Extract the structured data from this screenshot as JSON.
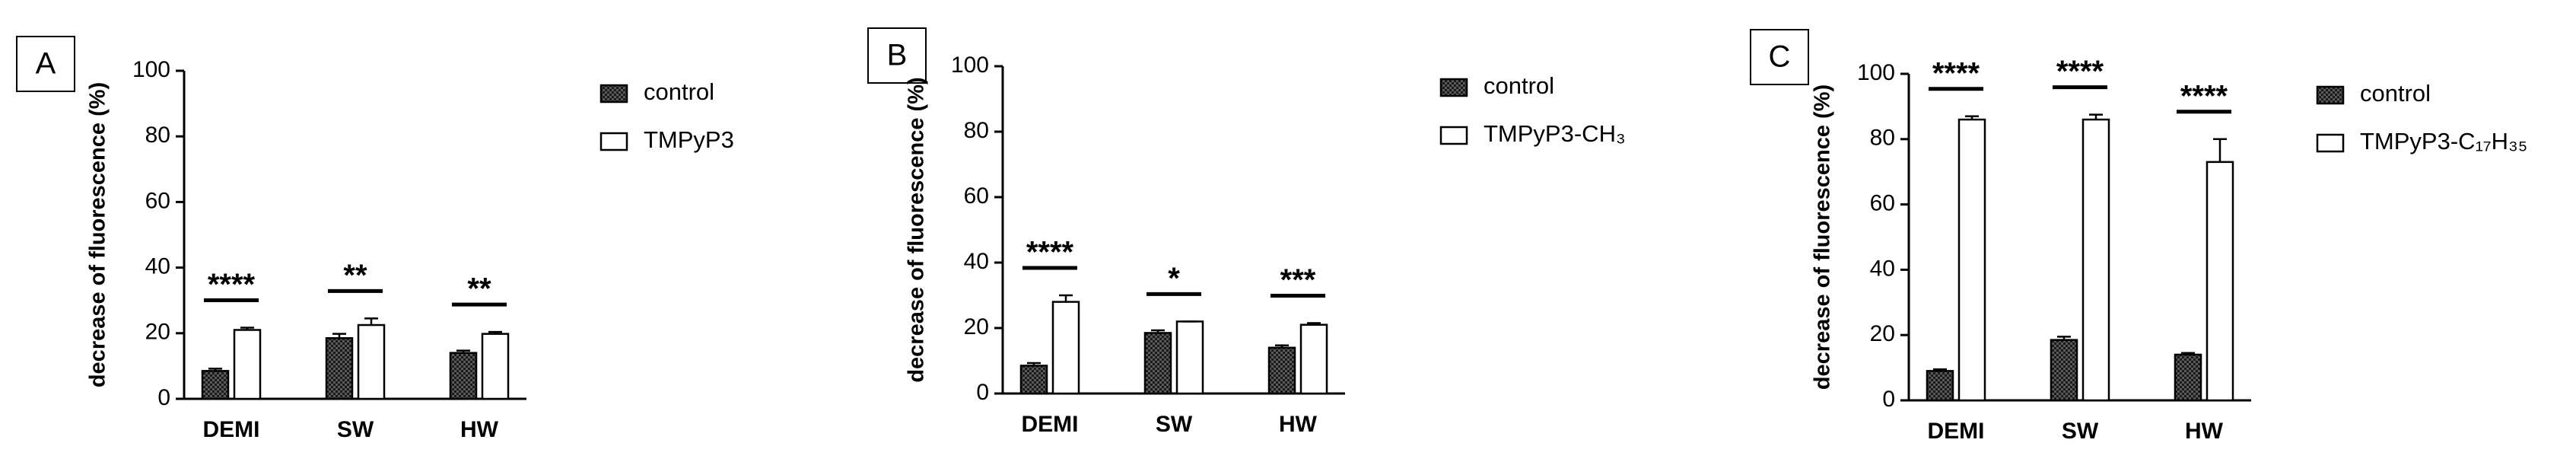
{
  "chart_data": [
    {
      "type": "bar",
      "panel": "A",
      "ylabel": "decrease of fluorescence (%)",
      "categories": [
        "DEMI",
        "SW",
        "HW"
      ],
      "ylim": [
        0,
        100
      ],
      "yticks": [
        0,
        20,
        40,
        60,
        80,
        100
      ],
      "series": [
        {
          "name": "control",
          "color": "#5a5a5a",
          "hatch": true,
          "values": [
            8.5,
            18.5,
            14
          ],
          "errors": [
            0.7,
            1.3,
            0.7
          ]
        },
        {
          "name": "TMPyP3",
          "color": "#ffffff",
          "hatch": false,
          "values": [
            21,
            22.5,
            19.8
          ],
          "errors": [
            0.7,
            2,
            0.6
          ]
        }
      ],
      "annotations": [
        "****",
        "**",
        "**"
      ]
    },
    {
      "type": "bar",
      "panel": "B",
      "ylabel": "decrease of fluorescence (%)",
      "categories": [
        "DEMI",
        "SW",
        "HW"
      ],
      "ylim": [
        0,
        100
      ],
      "yticks": [
        0,
        20,
        40,
        60,
        80,
        100
      ],
      "series": [
        {
          "name": "control",
          "color": "#5a5a5a",
          "hatch": true,
          "values": [
            8.5,
            18.5,
            14
          ],
          "errors": [
            0.8,
            0.8,
            0.7
          ]
        },
        {
          "name": "TMPyP3-CH₃",
          "color": "#ffffff",
          "hatch": false,
          "values": [
            28,
            22,
            21
          ],
          "errors": [
            2,
            0,
            0.5
          ]
        }
      ],
      "annotations": [
        "****",
        "*",
        "***"
      ]
    },
    {
      "type": "bar",
      "panel": "C",
      "ylabel": "decrease of fluorescence (%)",
      "categories": [
        "DEMI",
        "SW",
        "HW"
      ],
      "ylim": [
        0,
        100
      ],
      "yticks": [
        0,
        20,
        40,
        60,
        80,
        100
      ],
      "series": [
        {
          "name": "control",
          "color": "#5a5a5a",
          "hatch": true,
          "values": [
            9,
            18.5,
            14
          ],
          "errors": [
            0.5,
            1,
            0.5
          ]
        },
        {
          "name": "TMPyP3-C₁₇H₃₅",
          "color": "#ffffff",
          "hatch": false,
          "values": [
            86,
            86,
            73
          ],
          "errors": [
            1,
            1.5,
            7
          ]
        }
      ],
      "annotations": [
        "****",
        "****",
        "****"
      ]
    }
  ]
}
